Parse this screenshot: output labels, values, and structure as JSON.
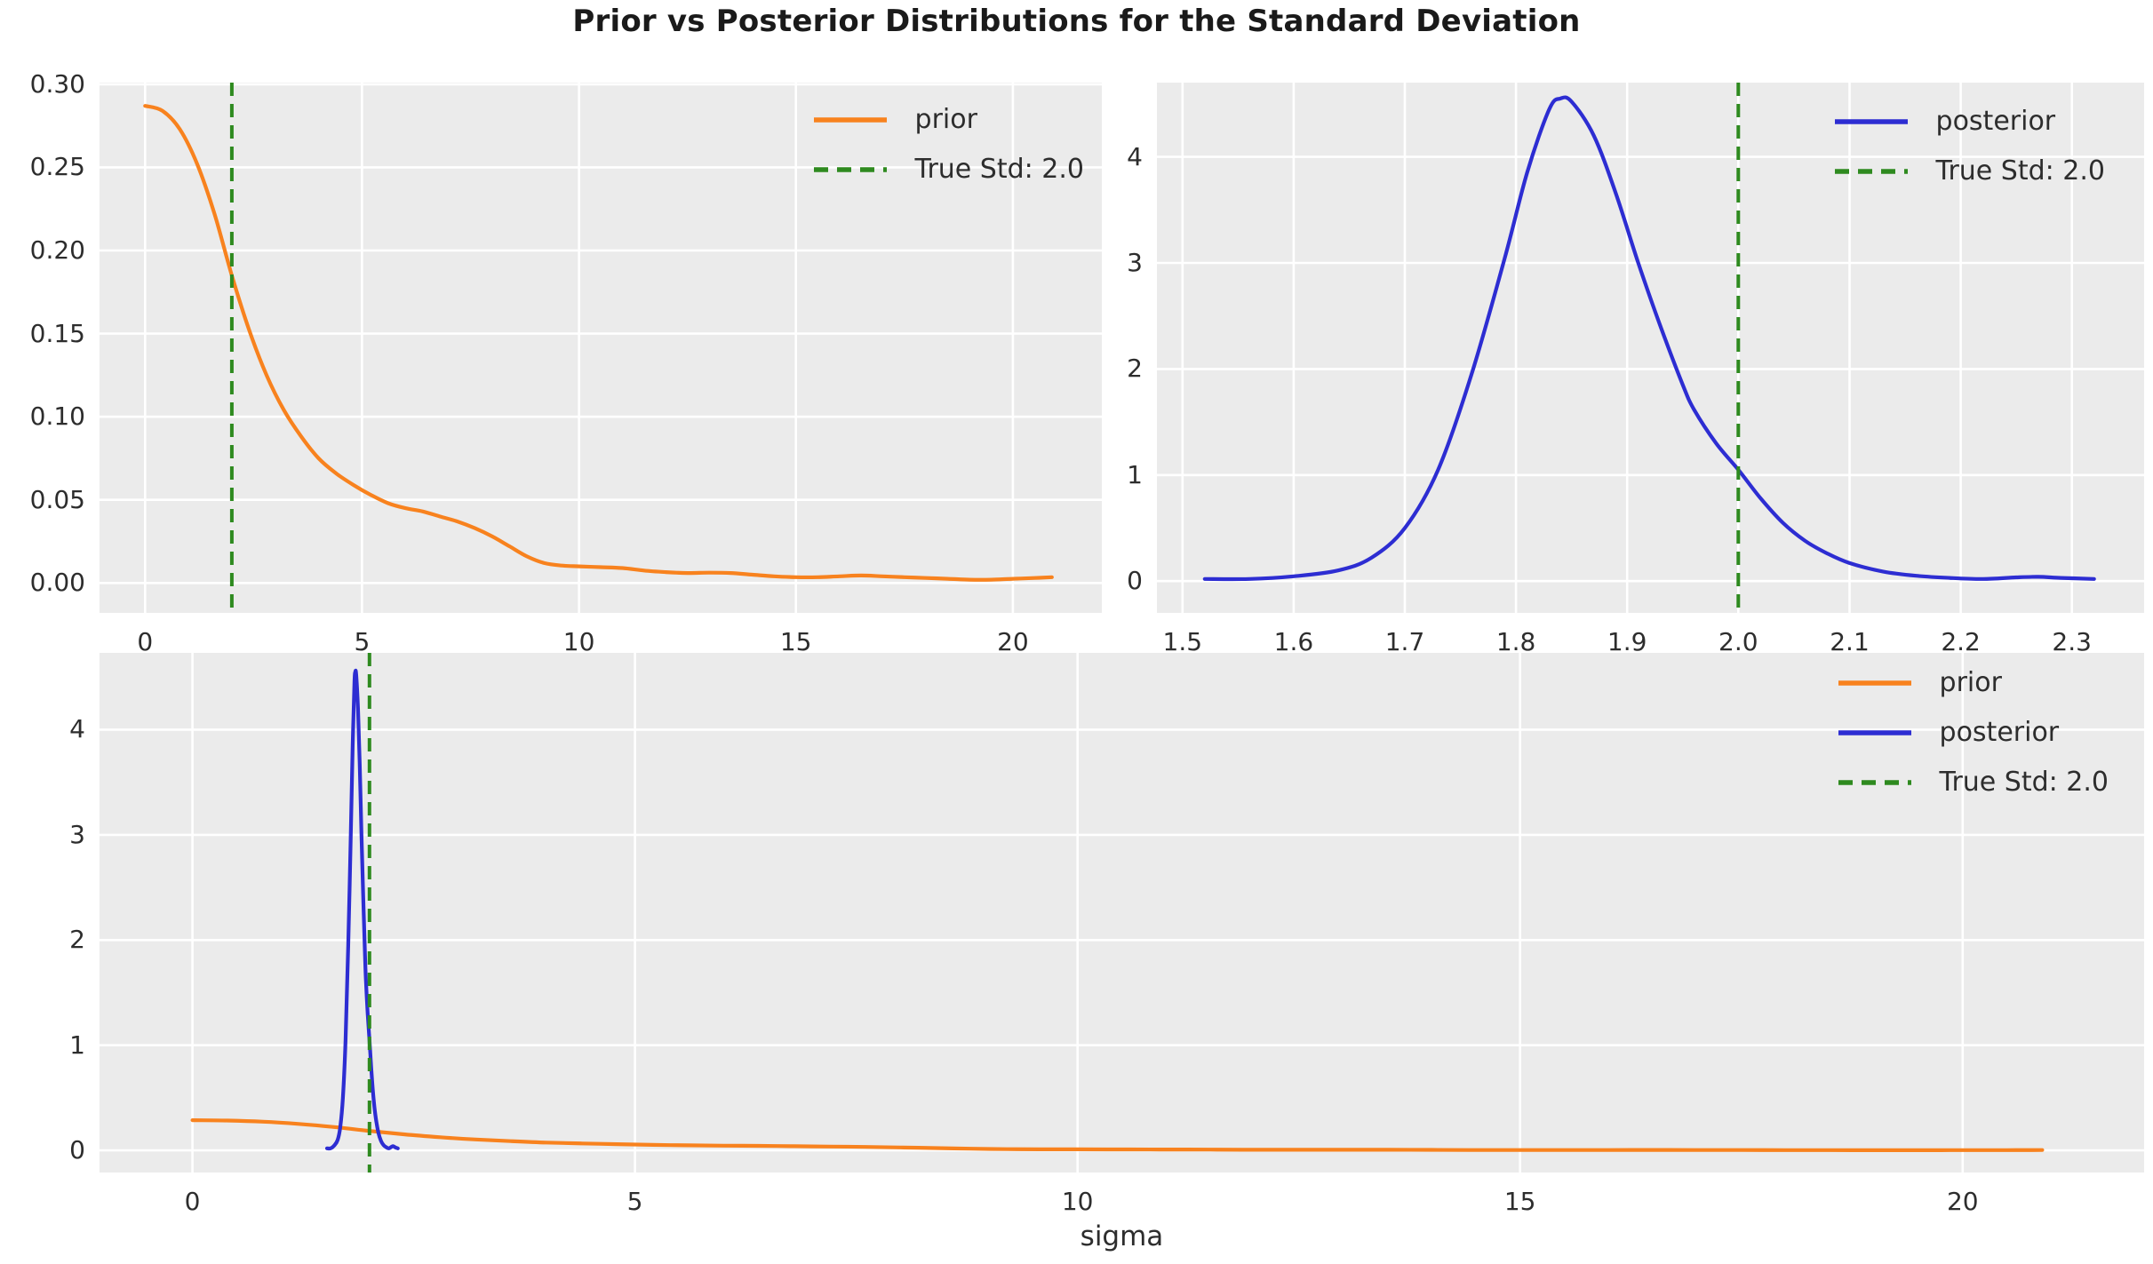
{
  "chart_data": {
    "type": "line",
    "figure_title": "Prior vs Posterior Distributions for the Standard Deviation",
    "colors": {
      "prior": "#f8821e",
      "posterior": "#2d2dd2",
      "true_std": "#2e8a1f",
      "panel_bg": "#ebebeb",
      "grid": "#ffffff",
      "text": "#2d2d2d",
      "title": "#1a1a1a",
      "figure_bg": "#ffffff"
    },
    "series_data": {
      "prior": {
        "label": "prior",
        "color": "#f8821e",
        "style": "solid",
        "points": [
          [
            0,
            0.287
          ],
          [
            0.4,
            0.284
          ],
          [
            0.8,
            0.273
          ],
          [
            1.2,
            0.252
          ],
          [
            1.6,
            0.222
          ],
          [
            2,
            0.185
          ],
          [
            2.4,
            0.152
          ],
          [
            2.8,
            0.125
          ],
          [
            3.2,
            0.104
          ],
          [
            3.6,
            0.088
          ],
          [
            4,
            0.075
          ],
          [
            4.4,
            0.066
          ],
          [
            4.8,
            0.059
          ],
          [
            5.2,
            0.053
          ],
          [
            5.6,
            0.048
          ],
          [
            6,
            0.045
          ],
          [
            6.4,
            0.043
          ],
          [
            6.8,
            0.04
          ],
          [
            7.2,
            0.037
          ],
          [
            7.6,
            0.033
          ],
          [
            8,
            0.028
          ],
          [
            8.4,
            0.022
          ],
          [
            8.8,
            0.016
          ],
          [
            9.2,
            0.012
          ],
          [
            9.6,
            0.0105
          ],
          [
            10,
            0.01
          ],
          [
            10.5,
            0.0095
          ],
          [
            11,
            0.009
          ],
          [
            11.5,
            0.0075
          ],
          [
            12,
            0.0065
          ],
          [
            12.5,
            0.006
          ],
          [
            13,
            0.0062
          ],
          [
            13.5,
            0.006
          ],
          [
            14,
            0.005
          ],
          [
            14.5,
            0.004
          ],
          [
            15,
            0.0035
          ],
          [
            15.5,
            0.0035
          ],
          [
            16,
            0.004
          ],
          [
            16.5,
            0.0045
          ],
          [
            17,
            0.004
          ],
          [
            17.5,
            0.0035
          ],
          [
            18,
            0.003
          ],
          [
            18.5,
            0.0025
          ],
          [
            19,
            0.002
          ],
          [
            19.5,
            0.002
          ],
          [
            20,
            0.0025
          ],
          [
            20.5,
            0.003
          ],
          [
            20.9,
            0.0035
          ]
        ]
      },
      "posterior": {
        "label": "posterior",
        "color": "#2d2dd2",
        "style": "solid",
        "points": [
          [
            1.52,
            0.02
          ],
          [
            1.56,
            0.02
          ],
          [
            1.6,
            0.045
          ],
          [
            1.64,
            0.1
          ],
          [
            1.67,
            0.22
          ],
          [
            1.7,
            0.5
          ],
          [
            1.73,
            1.05
          ],
          [
            1.76,
            1.95
          ],
          [
            1.79,
            3.05
          ],
          [
            1.81,
            3.85
          ],
          [
            1.83,
            4.45
          ],
          [
            1.84,
            4.55
          ],
          [
            1.85,
            4.52
          ],
          [
            1.87,
            4.2
          ],
          [
            1.89,
            3.65
          ],
          [
            1.91,
            3.0
          ],
          [
            1.93,
            2.4
          ],
          [
            1.95,
            1.85
          ],
          [
            1.96,
            1.62
          ],
          [
            1.98,
            1.3
          ],
          [
            2.0,
            1.05
          ],
          [
            2.02,
            0.78
          ],
          [
            2.04,
            0.55
          ],
          [
            2.06,
            0.38
          ],
          [
            2.08,
            0.26
          ],
          [
            2.1,
            0.17
          ],
          [
            2.13,
            0.09
          ],
          [
            2.16,
            0.05
          ],
          [
            2.19,
            0.03
          ],
          [
            2.22,
            0.02
          ],
          [
            2.25,
            0.035
          ],
          [
            2.27,
            0.04
          ],
          [
            2.29,
            0.03
          ],
          [
            2.32,
            0.02
          ]
        ]
      }
    },
    "true_std": {
      "x": 2.0,
      "label": "True Std: 2.0",
      "color": "#2e8a1f",
      "style": "dashed"
    },
    "panels": [
      {
        "name": "prior-subplot",
        "xlim": [
          -1.05,
          22.05
        ],
        "ylim": [
          -0.018,
          0.301
        ],
        "xticks": [
          0,
          5,
          10,
          15,
          20
        ],
        "xtick_labels": [
          "0",
          "5",
          "10",
          "15",
          "20"
        ],
        "yticks": [
          0.0,
          0.05,
          0.1,
          0.15,
          0.2,
          0.25,
          0.3
        ],
        "ytick_labels": [
          "0.00",
          "0.05",
          "0.10",
          "0.15",
          "0.20",
          "0.25",
          "0.30"
        ],
        "grid": true,
        "series": [
          "prior"
        ],
        "show_true_std": true,
        "legend": [
          "prior",
          "true_std"
        ],
        "legend_position": "upper right",
        "xlabel": ""
      },
      {
        "name": "posterior-subplot",
        "xlim": [
          1.477,
          2.365
        ],
        "ylim": [
          -0.3,
          4.7
        ],
        "xticks": [
          1.5,
          1.6,
          1.7,
          1.8,
          1.9,
          2.0,
          2.1,
          2.2,
          2.3
        ],
        "xtick_labels": [
          "1.5",
          "1.6",
          "1.7",
          "1.8",
          "1.9",
          "2.0",
          "2.1",
          "2.2",
          "2.3"
        ],
        "yticks": [
          0,
          1,
          2,
          3,
          4
        ],
        "ytick_labels": [
          "0",
          "1",
          "2",
          "3",
          "4"
        ],
        "grid": true,
        "series": [
          "posterior"
        ],
        "show_true_std": true,
        "legend": [
          "posterior",
          "true_std"
        ],
        "legend_position": "upper right",
        "xlabel": ""
      },
      {
        "name": "combined-subplot",
        "xlim": [
          -1.05,
          22.05
        ],
        "ylim": [
          -0.21,
          4.73
        ],
        "xticks": [
          0,
          5,
          10,
          15,
          20
        ],
        "xtick_labels": [
          "0",
          "5",
          "10",
          "15",
          "20"
        ],
        "yticks": [
          0,
          1,
          2,
          3,
          4
        ],
        "ytick_labels": [
          "0",
          "1",
          "2",
          "3",
          "4"
        ],
        "grid": true,
        "series": [
          "prior",
          "posterior"
        ],
        "show_true_std": true,
        "legend": [
          "prior",
          "posterior",
          "true_std"
        ],
        "legend_position": "upper right",
        "xlabel": "sigma"
      }
    ]
  }
}
